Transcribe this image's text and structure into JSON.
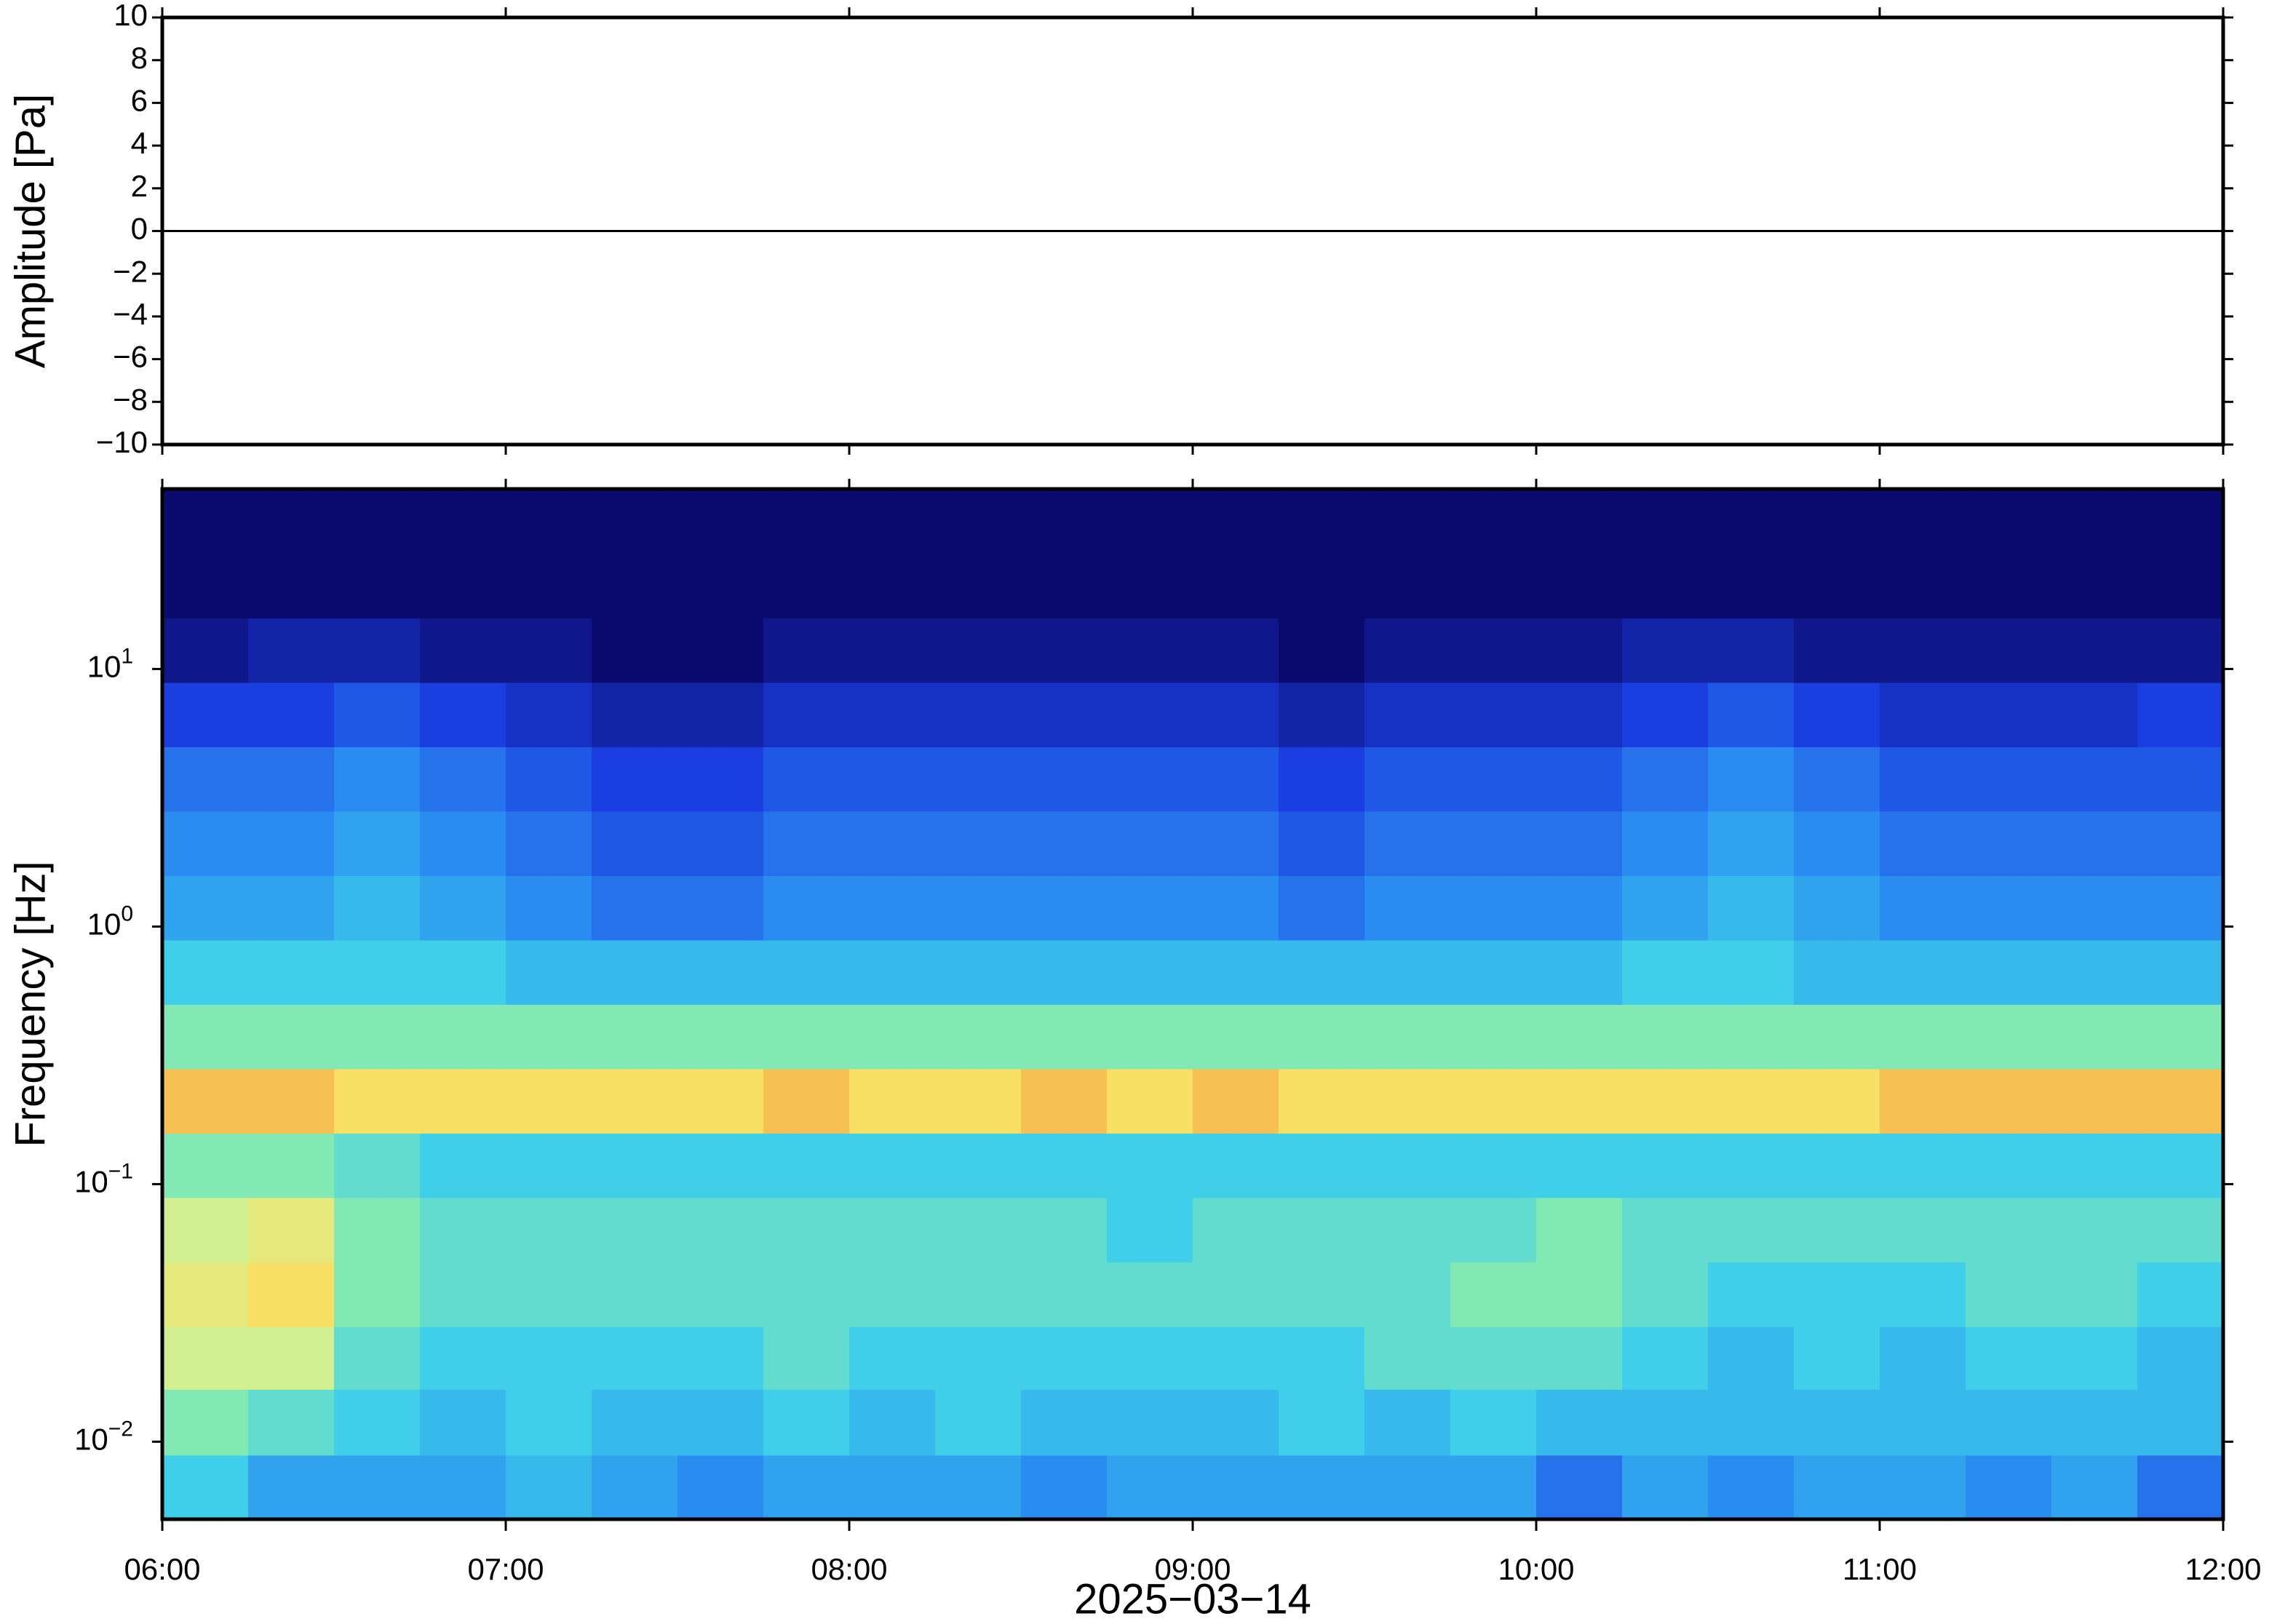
{
  "chart_data": [
    {
      "type": "line",
      "ylabel": "Amplitude [Pa]",
      "xlim": [
        6,
        12
      ],
      "ylim": [
        -10,
        10
      ],
      "yticks": [
        {
          "value": -10,
          "label": "−10"
        },
        {
          "value": -8,
          "label": "−8"
        },
        {
          "value": -6,
          "label": "−6"
        },
        {
          "value": -4,
          "label": "−4"
        },
        {
          "value": -2,
          "label": "−2"
        },
        0,
        2,
        4,
        6,
        8,
        10
      ],
      "series": [
        {
          "color": "#000000",
          "x": [
            6,
            7,
            8,
            9,
            10,
            11,
            12
          ],
          "values": [
            0,
            0,
            0,
            0,
            0,
            0,
            0
          ]
        }
      ]
    },
    {
      "type": "heatmap",
      "ylabel": "Frequency [Hz]",
      "xlabel": "2025−03−14",
      "xlim": [
        6,
        12
      ],
      "xticks": [
        {
          "value": 6,
          "label": "06:00"
        },
        {
          "value": 7,
          "label": "07:00"
        },
        {
          "value": 8,
          "label": "08:00"
        },
        {
          "value": 9,
          "label": "09:00"
        },
        {
          "value": 10,
          "label": "10:00"
        },
        {
          "value": 11,
          "label": "11:00"
        },
        {
          "value": 12,
          "label": "12:00"
        }
      ],
      "ylim": [
        0.005,
        50
      ],
      "log_y": true,
      "yticks": [
        {
          "value": 0.01,
          "label": "10",
          "exponent": "−2"
        },
        {
          "value": 0.1,
          "label": "10",
          "exponent": "−1"
        },
        {
          "value": 1,
          "label": "10",
          "exponent": "0"
        },
        {
          "value": 10,
          "label": "10",
          "exponent": "1"
        }
      ],
      "zlim": [
        0,
        10
      ],
      "colorscale": [
        [
          0,
          "#0b0a6e"
        ],
        [
          2,
          "#1a3ee0"
        ],
        [
          3.5,
          "#2a8cf0"
        ],
        [
          5,
          "#3fcfe8"
        ],
        [
          6,
          "#82e8b4"
        ],
        [
          7,
          "#d2f092"
        ],
        [
          8,
          "#f7e064"
        ],
        [
          9,
          "#f6a042"
        ],
        [
          10,
          "#e83a20"
        ]
      ],
      "time_bins": [
        6,
        6.25,
        6.5,
        6.75,
        7,
        7.25,
        7.5,
        7.75,
        8,
        8.25,
        8.5,
        8.75,
        9,
        9.25,
        9.5,
        9.75,
        10,
        10.25,
        10.5,
        10.75,
        11,
        11.25,
        11.5,
        11.75,
        12
      ],
      "freq_bins": [
        0.005,
        0.0089,
        0.016,
        0.028,
        0.05,
        0.089,
        0.158,
        0.281,
        0.5,
        0.89,
        1.58,
        2.81,
        5,
        8.9,
        15.8,
        28.1,
        50
      ],
      "z": [
        [
          5,
          4,
          4,
          4,
          4.5,
          4,
          3.5,
          4,
          4,
          4,
          3.5,
          4,
          4,
          4,
          4,
          4,
          3,
          4,
          3.5,
          4,
          4,
          3.5,
          4,
          3
        ],
        [
          6,
          5.5,
          5,
          4.5,
          5,
          4.5,
          4.5,
          5,
          4.5,
          5,
          4.5,
          4.5,
          4.5,
          5,
          4.5,
          5,
          4.5,
          4.5,
          4.5,
          4.5,
          4.5,
          4.5,
          4.5,
          4.5
        ],
        [
          7,
          7,
          5.5,
          5,
          5,
          5,
          5,
          5.5,
          5,
          5,
          5,
          5,
          5,
          5,
          5.5,
          5.5,
          5.5,
          5,
          4.5,
          5,
          4.5,
          5,
          5,
          4.5
        ],
        [
          7.5,
          8,
          6,
          5.5,
          5.5,
          5.5,
          5.5,
          5.5,
          5.5,
          5.5,
          5.5,
          5.5,
          5.5,
          5.5,
          5.5,
          6,
          6,
          5.5,
          5,
          5,
          5,
          5.5,
          5.5,
          5
        ],
        [
          7,
          7.5,
          6,
          5.5,
          5.5,
          5.5,
          5.5,
          5.5,
          5.5,
          5.5,
          5.5,
          5,
          5.5,
          5.5,
          5.5,
          5.5,
          6,
          5.5,
          5.5,
          5.5,
          5.5,
          5.5,
          5.5,
          5.5
        ],
        [
          6,
          6,
          5.5,
          5,
          5,
          5,
          5,
          5,
          5,
          5,
          5,
          5,
          5,
          5,
          5,
          5,
          5,
          5,
          5,
          5,
          5,
          5,
          5,
          5
        ],
        [
          8.5,
          8.5,
          8,
          8,
          8,
          8,
          8,
          8.5,
          8,
          8,
          8.5,
          8,
          8.5,
          8,
          8,
          8,
          8,
          8,
          8,
          8,
          8.5,
          8.5,
          8.5,
          8.5
        ],
        [
          6,
          6,
          6,
          6,
          6,
          6,
          6,
          6,
          6,
          6,
          6,
          6,
          6,
          6,
          6,
          6,
          6,
          6,
          6,
          6,
          6,
          6,
          6,
          6
        ],
        [
          5,
          5,
          5,
          5,
          4.5,
          4.5,
          4.5,
          4.5,
          4.5,
          4.5,
          4.5,
          4.5,
          4.5,
          4.5,
          4.5,
          4.5,
          4.5,
          5,
          5,
          4.5,
          4.5,
          4.5,
          4.5,
          4.5
        ],
        [
          4,
          4,
          4.5,
          4,
          3.5,
          3,
          3,
          3.5,
          3.5,
          3.5,
          3.5,
          3.5,
          3.5,
          3,
          3.5,
          3.5,
          3.5,
          4,
          4.5,
          4,
          3.5,
          3.5,
          3.5,
          3.5
        ],
        [
          3.5,
          3.5,
          4,
          3.5,
          3,
          2.5,
          2.5,
          3,
          3,
          3,
          3,
          3,
          3,
          2.5,
          3,
          3,
          3,
          3.5,
          4,
          3.5,
          3,
          3,
          3,
          3
        ],
        [
          3,
          3,
          3.5,
          3,
          2.5,
          2,
          2,
          2.5,
          2.5,
          2.5,
          2.5,
          2.5,
          2.5,
          2,
          2.5,
          2.5,
          2.5,
          3,
          3.5,
          3,
          2.5,
          2.5,
          2.5,
          2.5
        ],
        [
          2,
          2,
          2.5,
          2,
          1.5,
          1,
          1,
          1.5,
          1.5,
          1.5,
          1.5,
          1.5,
          1.5,
          1,
          1.5,
          1.5,
          1.5,
          2,
          2.5,
          2,
          1.5,
          1.5,
          1.5,
          2
        ],
        [
          0.5,
          1,
          1,
          0.5,
          0.5,
          0,
          0,
          0.5,
          0.5,
          0.5,
          0.5,
          0.5,
          0.5,
          0,
          0.5,
          0.5,
          0.5,
          1,
          1,
          0.5,
          0.5,
          0.5,
          0.5,
          0.5
        ],
        [
          0,
          0,
          0,
          0,
          0,
          0,
          0,
          0,
          0,
          0,
          0,
          0,
          0,
          0,
          0,
          0,
          0,
          0,
          0,
          0,
          0,
          0,
          0,
          0
        ],
        [
          0,
          0,
          0,
          0,
          0,
          0,
          0,
          0,
          0,
          0,
          0,
          0,
          0,
          0,
          0,
          0,
          0,
          0,
          0,
          0,
          0,
          0,
          0,
          0
        ]
      ]
    }
  ]
}
